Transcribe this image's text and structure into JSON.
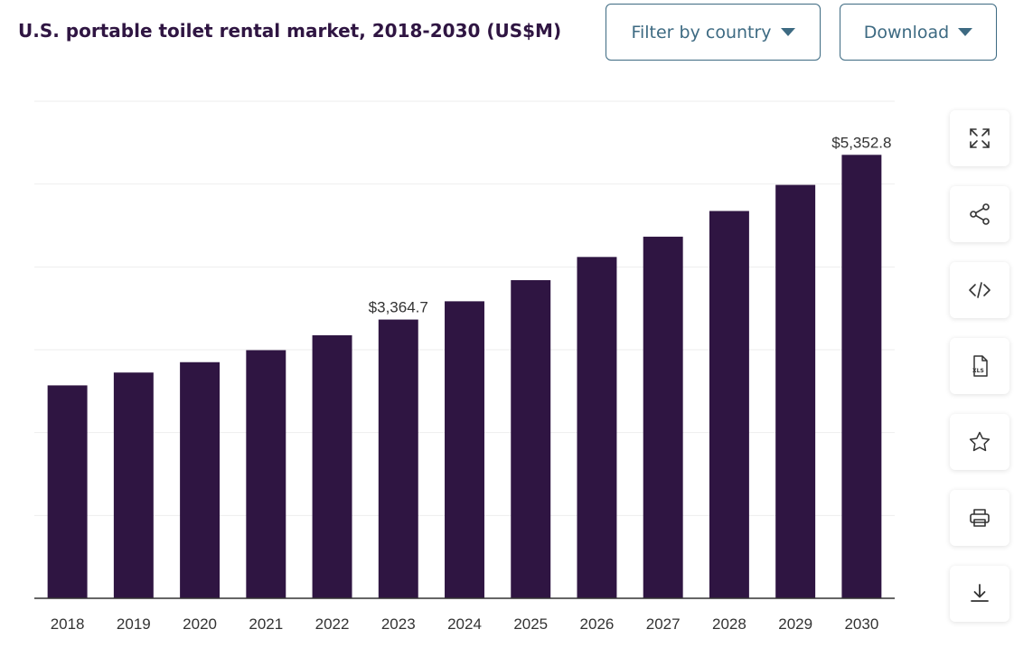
{
  "header": {
    "title": "U.S. portable toilet rental market, 2018-2030 (US$M)",
    "filter_label": "Filter by country",
    "download_label": "Download"
  },
  "colors": {
    "bar": "#2f1542",
    "axis": "#333333",
    "grid": "#eeeeee",
    "button": "#3d6a82"
  },
  "tools": [
    {
      "name": "fullscreen-icon"
    },
    {
      "name": "share-icon"
    },
    {
      "name": "embed-code-icon"
    },
    {
      "name": "xls-file-icon",
      "text": "XLS"
    },
    {
      "name": "star-icon"
    },
    {
      "name": "print-icon"
    },
    {
      "name": "download-icon"
    }
  ],
  "chart_data": {
    "type": "bar",
    "title": "",
    "xlabel": "",
    "ylabel": "",
    "categories": [
      "2018",
      "2019",
      "2020",
      "2021",
      "2022",
      "2023",
      "2024",
      "2025",
      "2026",
      "2027",
      "2028",
      "2029",
      "2030"
    ],
    "values": [
      2570,
      2725,
      2850,
      2995,
      3175,
      3364.7,
      3585,
      3840,
      4120,
      4365,
      4675,
      4990,
      5352.8
    ],
    "data_labels": {
      "5": "$3,364.7",
      "12": "$5,352.8"
    },
    "ylim": [
      0,
      6000
    ],
    "grid": true,
    "legend": "none"
  }
}
